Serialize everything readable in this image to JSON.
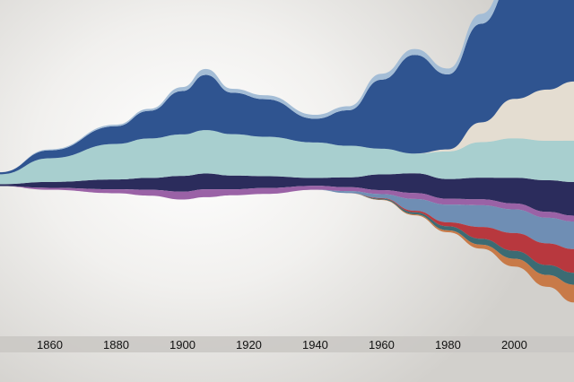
{
  "chart_data": {
    "type": "area",
    "subtype": "streamgraph",
    "title": "",
    "xlabel": "",
    "ylabel": "",
    "x_ticks": [
      1860,
      1880,
      1900,
      1920,
      1940,
      1960,
      1980,
      2000
    ],
    "xlim": [
      1845,
      2018
    ],
    "x": [
      1845,
      1860,
      1880,
      1890,
      1900,
      1907,
      1915,
      1925,
      1940,
      1950,
      1960,
      1970,
      1980,
      1990,
      2000,
      2010,
      2018
    ],
    "series": [
      {
        "color": "#2b2c5c",
        "values": [
          1,
          3,
          5,
          6,
          8,
          8,
          7,
          6,
          4,
          5,
          8,
          10,
          10,
          11,
          13,
          16,
          17
        ]
      },
      {
        "color": "#a8cfcf",
        "values": [
          5,
          12,
          18,
          20,
          21,
          22,
          21,
          20,
          18,
          16,
          13,
          10,
          14,
          18,
          20,
          20,
          21
        ]
      },
      {
        "color": "#2f5490",
        "values": [
          1,
          4,
          9,
          14,
          22,
          28,
          21,
          19,
          12,
          18,
          35,
          50,
          38,
          50,
          60,
          66,
          70
        ]
      },
      {
        "color": "#a4bdd6",
        "values": [
          0,
          0.5,
          0.8,
          1,
          2,
          3,
          2,
          2,
          2,
          2,
          3,
          3,
          3,
          5,
          8,
          10,
          12
        ]
      },
      {
        "color": "#9a62a6",
        "values": [
          0,
          1,
          2,
          3,
          4,
          4,
          3,
          3,
          2,
          2,
          2,
          3,
          3,
          3,
          3,
          3,
          3
        ]
      },
      {
        "color": "#6f8eb4",
        "values": [
          0,
          0,
          0,
          0,
          0,
          0,
          0,
          0,
          0,
          1,
          2,
          6,
          9,
          11,
          12,
          13,
          14
        ]
      },
      {
        "color": "#3c6b73",
        "values": [
          0,
          0,
          0,
          0,
          0,
          0,
          0,
          0,
          0,
          0,
          0.5,
          1,
          2,
          3,
          4,
          5,
          6
        ]
      },
      {
        "color": "#b8383e",
        "values": [
          0,
          0,
          0,
          0,
          0,
          0,
          0,
          0,
          0,
          0,
          0.3,
          0.8,
          2,
          6,
          9,
          11,
          12
        ]
      },
      {
        "color": "#c87a48",
        "values": [
          0,
          0,
          0,
          0,
          0,
          0,
          0,
          0,
          0,
          0,
          0.2,
          0.5,
          1,
          2,
          4,
          6,
          9
        ]
      },
      {
        "color": "#e4ddd1",
        "values": [
          0,
          0,
          0,
          0,
          0,
          0,
          0,
          0,
          0,
          0,
          0,
          0,
          1,
          10,
          20,
          26,
          30
        ]
      }
    ],
    "baseline_shift": [
      0,
      0,
      0,
      0,
      0,
      0,
      0,
      0,
      0,
      0,
      0,
      0,
      4,
      12,
      22,
      30,
      36
    ],
    "legend": "none",
    "grid": false,
    "axis_band_color": "#c9c7c3"
  }
}
